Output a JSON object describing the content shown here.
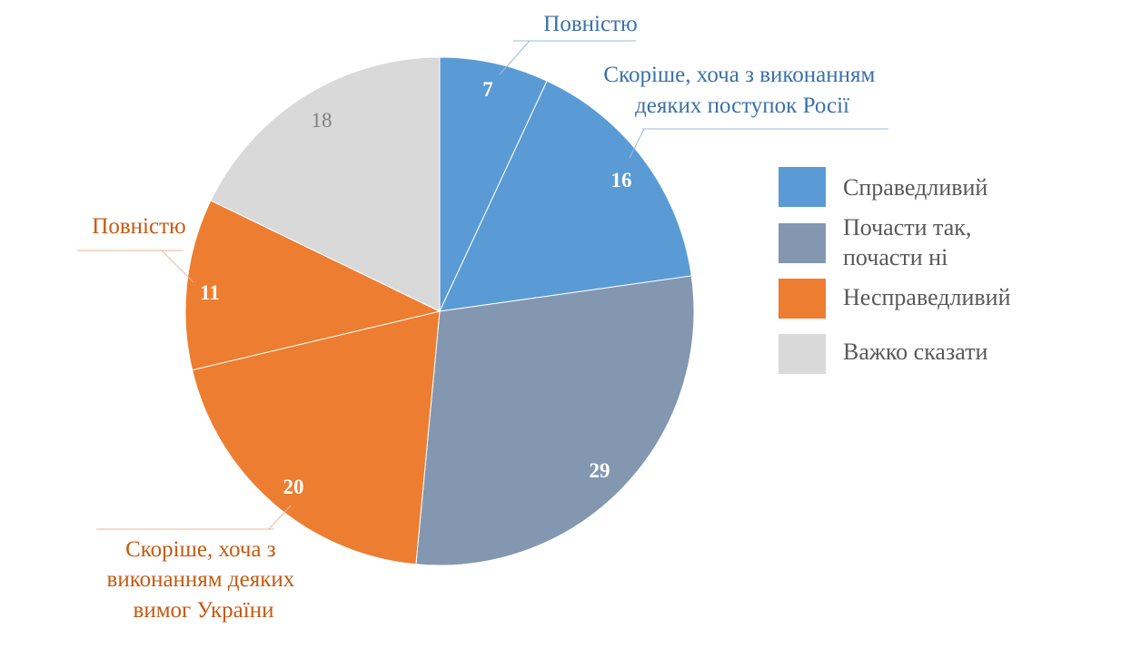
{
  "chart_data": {
    "type": "pie",
    "title": "",
    "categories": [
      "Справедливий",
      "Почасти так, почасти ні",
      "Несправедливий",
      "Важко сказати"
    ],
    "category_colors": [
      "#5b9bd5",
      "#8497b0",
      "#ed7d31",
      "#d9d9d9"
    ],
    "legend_position": "right",
    "slices": [
      {
        "value": 7,
        "category": 0,
        "sublabel_lines": [
          "Повністю"
        ]
      },
      {
        "value": 16,
        "category": 0,
        "sublabel_lines": [
          "Скоріше, хоча з виконанням",
          "деяких поступок Росії"
        ]
      },
      {
        "value": 29,
        "category": 1,
        "sublabel_lines": []
      },
      {
        "value": 20,
        "category": 2,
        "sublabel_lines": [
          "Скоріше, хоча з",
          "виконанням деяких",
          "вимог України"
        ]
      },
      {
        "value": 11,
        "category": 2,
        "sublabel_lines": [
          "Повністю"
        ]
      },
      {
        "value": 18,
        "category": 3,
        "sublabel_lines": []
      }
    ],
    "legend_lines": [
      [
        "Справедливий"
      ],
      [
        "Почасти так,",
        "почасти ні"
      ],
      [
        "Несправедливий"
      ],
      [
        "Важко сказати"
      ]
    ]
  }
}
